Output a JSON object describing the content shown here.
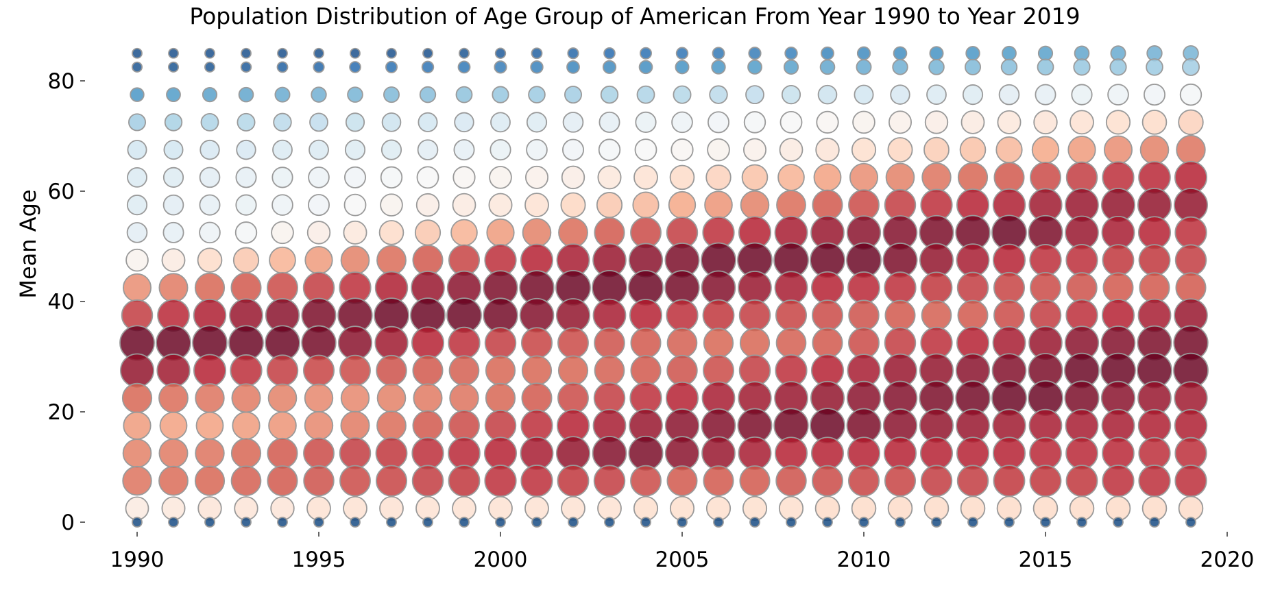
{
  "chart_data": {
    "type": "scatter",
    "title": "Population Distribution of Age Group of American From Year 1990 to Year 2019",
    "xlabel": "",
    "ylabel": "Mean Age",
    "xlim": [
      1990,
      2020
    ],
    "ylim": [
      0,
      85
    ],
    "x_ticks": [
      1990,
      1995,
      2000,
      2005,
      2010,
      2015,
      2020
    ],
    "y_ticks": [
      0,
      20,
      40,
      60,
      80
    ],
    "grid": false,
    "colormap": "RdBu_r",
    "size_and_color_encode": "population share of age group (relative, 0-1)",
    "years": [
      1990,
      1991,
      1992,
      1993,
      1994,
      1995,
      1996,
      1997,
      1998,
      1999,
      2000,
      2001,
      2002,
      2003,
      2004,
      2005,
      2006,
      2007,
      2008,
      2009,
      2010,
      2011,
      2012,
      2013,
      2014,
      2015,
      2016,
      2017,
      2018,
      2019
    ],
    "mean_ages": [
      0,
      2.5,
      7.5,
      12.5,
      17.5,
      22.5,
      27.5,
      32.5,
      37.5,
      42.5,
      47.5,
      52.5,
      57.5,
      62.5,
      67.5,
      72.5,
      77.5,
      82.5,
      85
    ],
    "series": [
      {
        "name": "",
        "mean_age": 85,
        "values": [
          0.05,
          0.05,
          0.05,
          0.05,
          0.05,
          0.05,
          0.05,
          0.05,
          0.05,
          0.06,
          0.07,
          0.08,
          0.09,
          0.1,
          0.11,
          0.12,
          0.13,
          0.14,
          0.15,
          0.16,
          0.17,
          0.18,
          0.19,
          0.2,
          0.21,
          0.22,
          0.23,
          0.24,
          0.25,
          0.26
        ]
      },
      {
        "name": "",
        "mean_age": 82.5,
        "values": [
          0.06,
          0.06,
          0.06,
          0.07,
          0.08,
          0.09,
          0.1,
          0.11,
          0.12,
          0.13,
          0.14,
          0.15,
          0.16,
          0.17,
          0.18,
          0.19,
          0.2,
          0.21,
          0.22,
          0.23,
          0.24,
          0.25,
          0.26,
          0.27,
          0.28,
          0.29,
          0.3,
          0.3,
          0.31,
          0.32
        ]
      },
      {
        "name": "",
        "mean_age": 77.5,
        "values": [
          0.2,
          0.21,
          0.22,
          0.23,
          0.24,
          0.25,
          0.26,
          0.27,
          0.28,
          0.29,
          0.3,
          0.31,
          0.32,
          0.33,
          0.34,
          0.35,
          0.36,
          0.37,
          0.38,
          0.39,
          0.4,
          0.41,
          0.42,
          0.43,
          0.44,
          0.45,
          0.46,
          0.47,
          0.48,
          0.49
        ]
      },
      {
        "name": "",
        "mean_age": 72.5,
        "values": [
          0.32,
          0.33,
          0.34,
          0.35,
          0.36,
          0.37,
          0.38,
          0.39,
          0.4,
          0.41,
          0.42,
          0.43,
          0.44,
          0.45,
          0.46,
          0.47,
          0.48,
          0.49,
          0.5,
          0.51,
          0.52,
          0.53,
          0.54,
          0.55,
          0.56,
          0.57,
          0.58,
          0.59,
          0.6,
          0.62
        ]
      },
      {
        "name": "",
        "mean_age": 67.5,
        "values": [
          0.4,
          0.4,
          0.41,
          0.41,
          0.42,
          0.42,
          0.43,
          0.43,
          0.44,
          0.45,
          0.46,
          0.47,
          0.48,
          0.49,
          0.5,
          0.51,
          0.52,
          0.53,
          0.55,
          0.57,
          0.59,
          0.61,
          0.63,
          0.65,
          0.67,
          0.7,
          0.72,
          0.74,
          0.76,
          0.78
        ]
      },
      {
        "name": "",
        "mean_age": 62.5,
        "values": [
          0.42,
          0.43,
          0.44,
          0.45,
          0.46,
          0.47,
          0.48,
          0.49,
          0.5,
          0.51,
          0.52,
          0.53,
          0.54,
          0.56,
          0.58,
          0.6,
          0.62,
          0.65,
          0.68,
          0.71,
          0.74,
          0.76,
          0.78,
          0.8,
          0.82,
          0.84,
          0.86,
          0.88,
          0.89,
          0.9
        ]
      },
      {
        "name": "",
        "mean_age": 57.5,
        "values": [
          0.43,
          0.44,
          0.45,
          0.46,
          0.47,
          0.48,
          0.5,
          0.52,
          0.54,
          0.55,
          0.56,
          0.58,
          0.61,
          0.64,
          0.67,
          0.7,
          0.73,
          0.76,
          0.79,
          0.82,
          0.84,
          0.86,
          0.88,
          0.9,
          0.91,
          0.93,
          0.94,
          0.95,
          0.95,
          0.95
        ]
      },
      {
        "name": "",
        "mean_age": 52.5,
        "values": [
          0.44,
          0.45,
          0.47,
          0.49,
          0.52,
          0.54,
          0.56,
          0.6,
          0.64,
          0.68,
          0.72,
          0.76,
          0.79,
          0.82,
          0.84,
          0.86,
          0.88,
          0.9,
          0.92,
          0.94,
          0.96,
          0.97,
          0.98,
          0.99,
          1.0,
          0.98,
          0.94,
          0.92,
          0.9,
          0.88
        ]
      },
      {
        "name": "",
        "mean_age": 47.5,
        "values": [
          0.52,
          0.55,
          0.6,
          0.64,
          0.68,
          0.72,
          0.76,
          0.79,
          0.82,
          0.85,
          0.88,
          0.9,
          0.92,
          0.94,
          0.96,
          0.98,
          1.0,
          1.0,
          1.0,
          1.0,
          1.0,
          0.98,
          0.95,
          0.92,
          0.9,
          0.88,
          0.88,
          0.87,
          0.87,
          0.86
        ]
      },
      {
        "name": "",
        "mean_age": 42.5,
        "values": [
          0.74,
          0.77,
          0.8,
          0.82,
          0.84,
          0.86,
          0.88,
          0.91,
          0.94,
          0.96,
          0.98,
          0.99,
          1.0,
          1.0,
          1.0,
          0.99,
          0.97,
          0.94,
          0.92,
          0.9,
          0.89,
          0.88,
          0.87,
          0.86,
          0.85,
          0.84,
          0.83,
          0.82,
          0.82,
          0.82
        ]
      },
      {
        "name": "",
        "mean_age": 37.5,
        "values": [
          0.86,
          0.89,
          0.91,
          0.94,
          0.96,
          0.98,
          0.99,
          1.0,
          1.0,
          1.0,
          0.99,
          0.97,
          0.95,
          0.92,
          0.9,
          0.88,
          0.87,
          0.86,
          0.85,
          0.84,
          0.83,
          0.82,
          0.81,
          0.82,
          0.84,
          0.86,
          0.88,
          0.9,
          0.92,
          0.94
        ]
      },
      {
        "name": "",
        "mean_age": 32.5,
        "values": [
          1.0,
          1.0,
          1.0,
          1.0,
          1.0,
          0.99,
          0.96,
          0.93,
          0.9,
          0.88,
          0.86,
          0.85,
          0.84,
          0.83,
          0.82,
          0.81,
          0.8,
          0.8,
          0.81,
          0.82,
          0.84,
          0.86,
          0.88,
          0.9,
          0.92,
          0.94,
          0.96,
          0.97,
          0.98,
          0.99
        ]
      },
      {
        "name": "",
        "mean_age": 27.5,
        "values": [
          0.95,
          0.93,
          0.9,
          0.88,
          0.86,
          0.85,
          0.84,
          0.83,
          0.82,
          0.81,
          0.8,
          0.8,
          0.8,
          0.81,
          0.82,
          0.83,
          0.84,
          0.86,
          0.88,
          0.9,
          0.92,
          0.94,
          0.95,
          0.96,
          0.97,
          0.98,
          1.0,
          1.0,
          1.0,
          1.0
        ]
      },
      {
        "name": "",
        "mean_age": 22.5,
        "values": [
          0.8,
          0.79,
          0.78,
          0.77,
          0.76,
          0.75,
          0.75,
          0.76,
          0.77,
          0.78,
          0.8,
          0.82,
          0.84,
          0.86,
          0.88,
          0.9,
          0.92,
          0.93,
          0.94,
          0.95,
          0.96,
          0.97,
          0.98,
          0.99,
          1.0,
          1.0,
          0.98,
          0.96,
          0.94,
          0.93
        ]
      },
      {
        "name": "",
        "mean_age": 17.5,
        "values": [
          0.72,
          0.71,
          0.71,
          0.72,
          0.73,
          0.75,
          0.77,
          0.79,
          0.82,
          0.84,
          0.86,
          0.88,
          0.9,
          0.92,
          0.94,
          0.96,
          0.97,
          0.98,
          0.99,
          1.0,
          0.98,
          0.96,
          0.95,
          0.94,
          0.93,
          0.92,
          0.92,
          0.92,
          0.91,
          0.91
        ]
      },
      {
        "name": "",
        "mean_age": 12.5,
        "values": [
          0.76,
          0.77,
          0.78,
          0.8,
          0.82,
          0.84,
          0.86,
          0.87,
          0.88,
          0.89,
          0.9,
          0.92,
          0.95,
          0.97,
          0.98,
          0.96,
          0.94,
          0.92,
          0.9,
          0.9,
          0.9,
          0.9,
          0.9,
          0.9,
          0.9,
          0.89,
          0.89,
          0.89,
          0.88,
          0.88
        ]
      },
      {
        "name": "",
        "mean_age": 7.5,
        "values": [
          0.78,
          0.79,
          0.8,
          0.81,
          0.82,
          0.83,
          0.84,
          0.85,
          0.86,
          0.87,
          0.88,
          0.88,
          0.87,
          0.86,
          0.84,
          0.82,
          0.82,
          0.82,
          0.83,
          0.84,
          0.85,
          0.85,
          0.86,
          0.86,
          0.87,
          0.87,
          0.87,
          0.88,
          0.88,
          0.88
        ]
      },
      {
        "name": "",
        "mean_age": 2.5,
        "values": [
          0.55,
          0.56,
          0.57,
          0.57,
          0.57,
          0.58,
          0.58,
          0.58,
          0.58,
          0.58,
          0.58,
          0.58,
          0.58,
          0.58,
          0.59,
          0.59,
          0.59,
          0.59,
          0.59,
          0.6,
          0.6,
          0.6,
          0.6,
          0.6,
          0.6,
          0.6,
          0.6,
          0.6,
          0.6,
          0.6
        ]
      },
      {
        "name": "",
        "mean_age": 0,
        "values": [
          0.04,
          0.04,
          0.04,
          0.04,
          0.04,
          0.04,
          0.04,
          0.04,
          0.04,
          0.04,
          0.04,
          0.04,
          0.04,
          0.04,
          0.04,
          0.04,
          0.04,
          0.04,
          0.04,
          0.04,
          0.04,
          0.04,
          0.04,
          0.04,
          0.04,
          0.04,
          0.04,
          0.04,
          0.04,
          0.04
        ]
      }
    ]
  }
}
